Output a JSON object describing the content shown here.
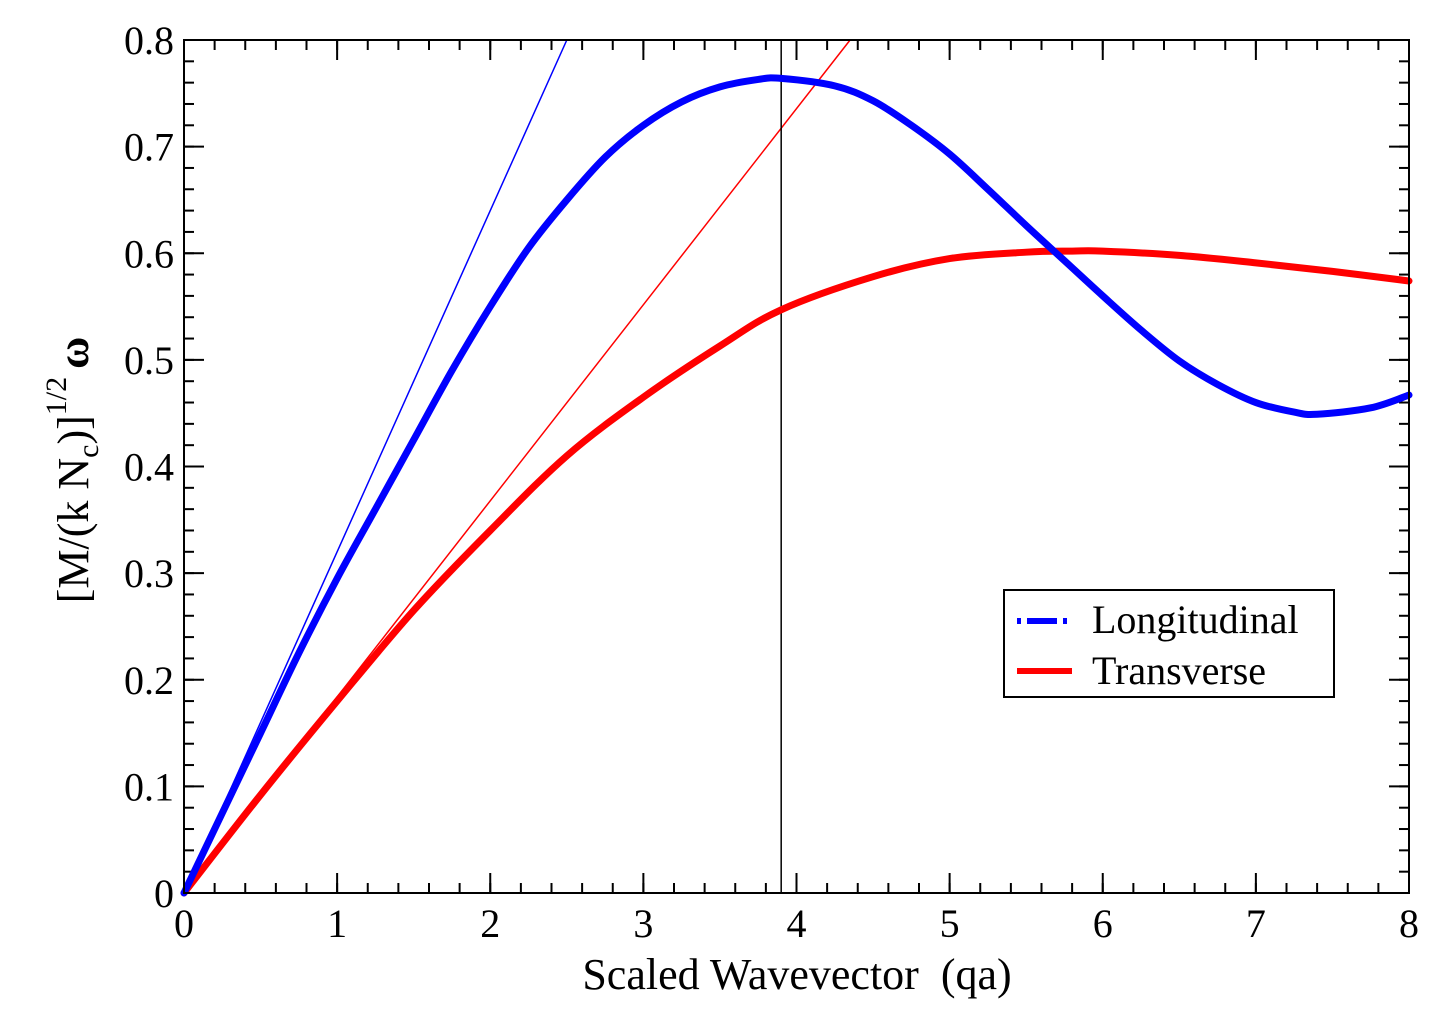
{
  "chart_data": {
    "type": "line",
    "title": "",
    "xlabel": "Scaled Wavevector  (qa)",
    "ylabel": {
      "main": "[M/(k N",
      "sub": "c",
      "close": ")]",
      "sup": "1/2",
      "omega": "ω"
    },
    "xlim": [
      0,
      8
    ],
    "ylim": [
      0,
      0.8
    ],
    "xticks": [
      0,
      1,
      2,
      3,
      4,
      5,
      6,
      7,
      8
    ],
    "xtick_labels": [
      "0",
      "1",
      "2",
      "3",
      "4",
      "5",
      "6",
      "7",
      "8"
    ],
    "yticks": [
      0,
      0.1,
      0.2,
      0.3,
      0.4,
      0.5,
      0.6,
      0.7,
      0.8
    ],
    "ytick_labels": [
      "0",
      "0.1",
      "0.2",
      "0.3",
      "0.4",
      "0.5",
      "0.6",
      "0.7",
      "0.8"
    ],
    "x_minor_step": 0.2,
    "y_minor_step": 0.02,
    "grid": false,
    "legend_position": "center-right",
    "series": [
      {
        "name": "Longitudinal",
        "color": "#0000ff",
        "style": "dash-dot",
        "x": [
          0,
          0.25,
          0.5,
          0.75,
          1.0,
          1.25,
          1.5,
          1.75,
          2.0,
          2.25,
          2.5,
          2.75,
          3.0,
          3.25,
          3.5,
          3.75,
          3.9,
          4.25,
          4.5,
          4.75,
          5.0,
          5.25,
          5.5,
          5.75,
          6.0,
          6.25,
          6.5,
          6.75,
          7.0,
          7.25,
          7.4,
          7.75,
          8.0
        ],
        "values": [
          0,
          0.075,
          0.15,
          0.225,
          0.295,
          0.36,
          0.425,
          0.49,
          0.55,
          0.605,
          0.65,
          0.69,
          0.72,
          0.742,
          0.756,
          0.763,
          0.764,
          0.757,
          0.743,
          0.72,
          0.693,
          0.66,
          0.626,
          0.593,
          0.56,
          0.528,
          0.499,
          0.477,
          0.46,
          0.451,
          0.449,
          0.455,
          0.467
        ]
      },
      {
        "name": "Transverse",
        "color": "#ff0000",
        "style": "solid",
        "x": [
          0,
          0.5,
          1.0,
          1.5,
          2.0,
          2.5,
          3.0,
          3.5,
          3.9,
          4.5,
          5.0,
          5.5,
          5.8,
          6.0,
          6.5,
          7.0,
          7.5,
          8.0
        ],
        "values": [
          0,
          0.092,
          0.18,
          0.265,
          0.34,
          0.41,
          0.465,
          0.513,
          0.547,
          0.578,
          0.595,
          0.601,
          0.602,
          0.602,
          0.598,
          0.591,
          0.583,
          0.574
        ]
      }
    ],
    "reference_lines": [
      {
        "name": "longitudinal-slope-line",
        "color": "#0000ff",
        "x": [
          0,
          2.5
        ],
        "values": [
          0,
          0.8
        ]
      },
      {
        "name": "transverse-slope-line",
        "color": "#ff0000",
        "x": [
          0,
          4.35
        ],
        "values": [
          0,
          0.8
        ]
      },
      {
        "name": "zone-boundary-line",
        "color": "#000000",
        "x": [
          3.9,
          3.9
        ],
        "values": [
          0,
          0.8
        ]
      }
    ]
  }
}
